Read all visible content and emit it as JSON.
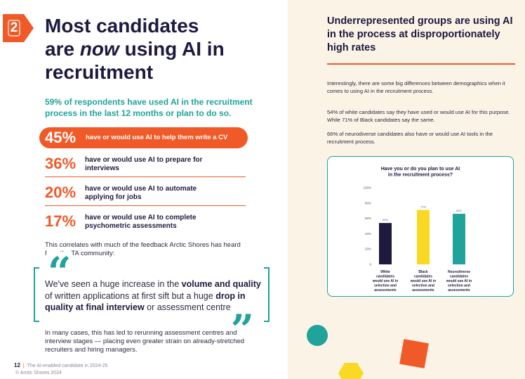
{
  "page": {
    "section_number": "2",
    "title_line1": "Most candidates",
    "title_pre": "are ",
    "title_em": "now",
    "title_post": " using AI in",
    "title_line3": "recruitment",
    "intro": "59% of respondents have used AI in the recruitment process in the last 12 months or plan to do so.",
    "stats": [
      {
        "pct": "45%",
        "text": "have or would use AI to help them write a CV"
      },
      {
        "pct": "36%",
        "text": "have or would use AI to prepare for interviews"
      },
      {
        "pct": "20%",
        "text": "have or would use AI to automate applying for jobs"
      },
      {
        "pct": "17%",
        "text": "have or would use AI to complete psychometric assessments"
      }
    ],
    "correlates": "This correlates with much of the feedback Arctic Shores has heard from the TA community:",
    "quote": {
      "p1": "We've seen a huge increase in the ",
      "b1": "volume and quality",
      "p2": " of written applications at first sift but a huge ",
      "b2": "drop in quality at final interview",
      "p3": " or assessment centre"
    },
    "after_quote": "In many cases, this has led to rerunning assessment centres and interview stages — placing even greater strain on already-stretched recruiters and hiring managers.",
    "footer": {
      "page_number": "12",
      "doc_title": "The AI-enabled candidate in 2024-25",
      "copyright": "© Arctic Shores 2024"
    },
    "right_title": "Underrepresented groups are using AI in the process at disproportionately high rates",
    "right_p1": "Interestingly, there are some big differences between demographics when it comes to using AI in the recruitment process.",
    "right_p2": "54% of white candidates say they have used or would use AI for this purpose. While 71% of Black candidates say the same.",
    "right_p3": "66% of neurodiverse candidates also have or would use AI tools in the recruitment process.",
    "colors": {
      "orange": "#f05a28",
      "teal": "#1fa39a",
      "navy": "#1d1a3e",
      "yellow": "#f9d923",
      "cream": "#fbf3e6"
    }
  },
  "chart_data": {
    "type": "bar",
    "title": "Have you or do you plan to use AI in the recruitment process?",
    "title_lines": [
      "Have you or do you plan to use AI",
      "in the recruitment process?"
    ],
    "categories": [
      "White candidates would use AI in selection and assessments",
      "Black candidates would use AI in selection and assessments",
      "Neurodiverse candidates would use AI in selection and assessments"
    ],
    "category_lines": [
      [
        "White",
        "candidates",
        "would use AI in",
        "selection and",
        "assessments"
      ],
      [
        "Black",
        "candidates",
        "would use AI in",
        "selection and",
        "assessments"
      ],
      [
        "Neurodiverse",
        "candidates",
        "would use AI in",
        "selection and",
        "assessments"
      ]
    ],
    "values": [
      54,
      71,
      66
    ],
    "value_labels": [
      "54%",
      "71%",
      "66%"
    ],
    "colors": [
      "#1d1a3e",
      "#f9d923",
      "#1fa39a"
    ],
    "yticks": [
      "0",
      "20%",
      "40%",
      "60%",
      "80%",
      "100%"
    ],
    "ylim": [
      0,
      100
    ],
    "grid": false
  }
}
